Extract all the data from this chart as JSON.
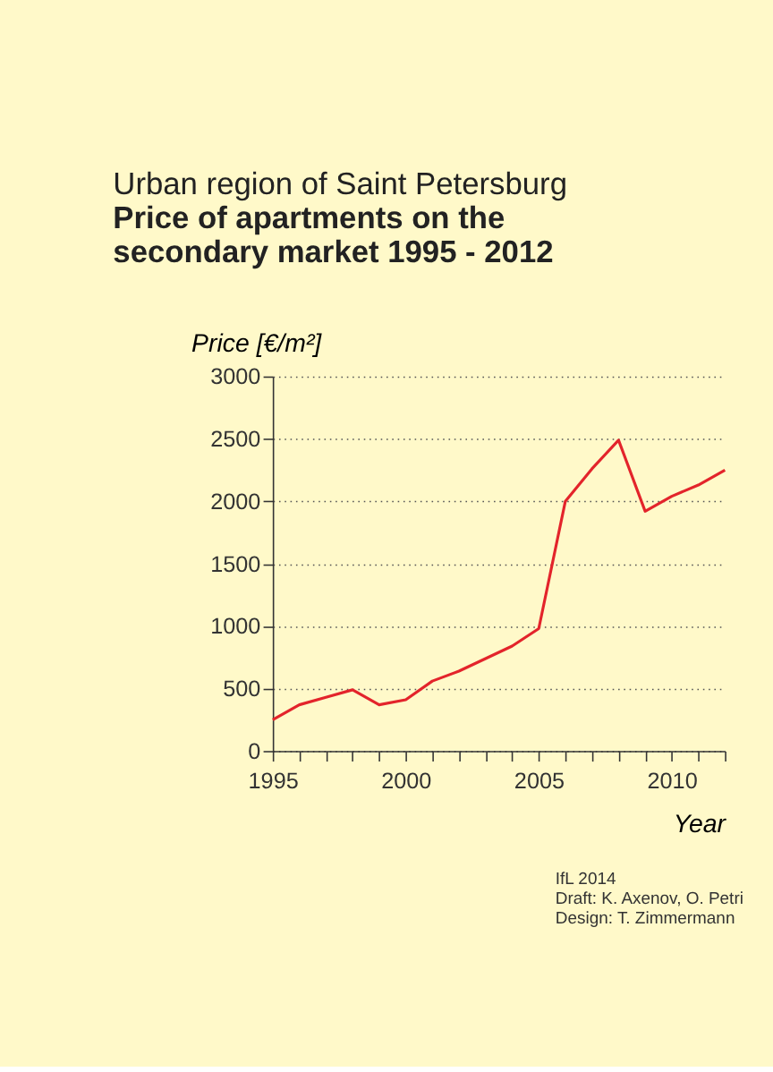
{
  "chart_data": {
    "type": "line",
    "title": "Urban region of Saint Petersburg",
    "subtitle": [
      "Price of apartments on the",
      "secondary market 1995 - 2012"
    ],
    "ylabel": "Price [€/m²]",
    "xlabel": "Year",
    "x": [
      1995,
      1996,
      1997,
      1998,
      1999,
      2000,
      2001,
      2002,
      2003,
      2004,
      2005,
      2006,
      2007,
      2008,
      2009,
      2010,
      2011,
      2012
    ],
    "series": [
      {
        "color": "#e3242b",
        "values": [
          250,
          370,
          430,
          490,
          370,
          410,
          560,
          640,
          740,
          840,
          980,
          2000,
          2260,
          2490,
          1920,
          2040,
          2130,
          2250
        ]
      }
    ],
    "xlim": [
      1995,
      2012
    ],
    "xticks": [
      1995,
      {
        "value": 1996,
        "label": null
      },
      {
        "value": 1997,
        "label": null
      },
      {
        "value": 1998,
        "label": null
      },
      {
        "value": 1999,
        "label": null
      },
      2000,
      {
        "value": 2001,
        "label": null
      },
      {
        "value": 2002,
        "label": null
      },
      {
        "value": 2003,
        "label": null
      },
      {
        "value": 2004,
        "label": null
      },
      2005,
      {
        "value": 2006,
        "label": null
      },
      {
        "value": 2007,
        "label": null
      },
      {
        "value": 2008,
        "label": null
      },
      {
        "value": 2009,
        "label": null
      },
      2010,
      {
        "value": 2011,
        "label": null
      },
      {
        "value": 2012,
        "label": null
      }
    ],
    "ylim": [
      0,
      3000
    ],
    "yticks": [
      0,
      500,
      1000,
      1500,
      2000,
      2500,
      3000
    ],
    "grid": "y",
    "line_style": "solid",
    "marker": "none",
    "legend": false,
    "annotations": [
      "IfL 2014",
      "Draft: K. Axenov, O. Petri",
      "Design: T. Zimmermann"
    ]
  }
}
